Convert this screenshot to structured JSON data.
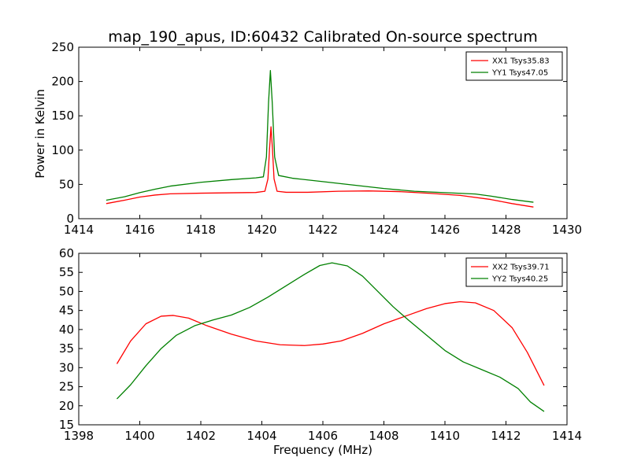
{
  "chart_data": [
    {
      "type": "line",
      "title": "map_190_apus, ID:60432 Calibrated On-source spectrum",
      "xlabel": "",
      "ylabel": "Power in Kelvin",
      "xlim": [
        1414,
        1430
      ],
      "ylim": [
        0,
        250
      ],
      "xticks": [
        1414,
        1416,
        1418,
        1420,
        1422,
        1424,
        1426,
        1428,
        1430
      ],
      "yticks": [
        0,
        50,
        100,
        150,
        200,
        250
      ],
      "grid": false,
      "legend_position": "top-right",
      "series": [
        {
          "name": "XX1 Tsys35.83",
          "color": "#ff0000",
          "points": [
            [
              1414.9,
              22
            ],
            [
              1415.5,
              27
            ],
            [
              1416,
              31.5
            ],
            [
              1416.5,
              34.5
            ],
            [
              1417,
              36.3
            ],
            [
              1418,
              37.2
            ],
            [
              1419,
              37.8
            ],
            [
              1419.8,
              38.2
            ],
            [
              1420.1,
              40
            ],
            [
              1420.2,
              58
            ],
            [
              1420.25,
              100
            ],
            [
              1420.3,
              134
            ],
            [
              1420.35,
              100
            ],
            [
              1420.4,
              58
            ],
            [
              1420.5,
              40
            ],
            [
              1420.8,
              38.5
            ],
            [
              1421.5,
              38.5
            ],
            [
              1422.5,
              40
            ],
            [
              1423.5,
              40.5
            ],
            [
              1424.5,
              39.5
            ],
            [
              1425.5,
              37
            ],
            [
              1426.5,
              34
            ],
            [
              1427.5,
              28
            ],
            [
              1428.2,
              22
            ],
            [
              1428.9,
              17
            ]
          ]
        },
        {
          "name": "YY1 Tsys47.05",
          "color": "#008000",
          "points": [
            [
              1414.9,
              27
            ],
            [
              1415.5,
              32
            ],
            [
              1416,
              38
            ],
            [
              1416.5,
              43
            ],
            [
              1417,
              47.5
            ],
            [
              1418,
              53
            ],
            [
              1419,
              57
            ],
            [
              1419.8,
              59.5
            ],
            [
              1420.05,
              61
            ],
            [
              1420.15,
              90
            ],
            [
              1420.22,
              170
            ],
            [
              1420.28,
              216
            ],
            [
              1420.34,
              170
            ],
            [
              1420.42,
              90
            ],
            [
              1420.55,
              63
            ],
            [
              1421,
              59
            ],
            [
              1422,
              54
            ],
            [
              1423,
              49
            ],
            [
              1424,
              44
            ],
            [
              1425,
              40
            ],
            [
              1426,
              38
            ],
            [
              1427,
              36
            ],
            [
              1427.5,
              33
            ],
            [
              1428.2,
              28
            ],
            [
              1428.9,
              24
            ]
          ]
        }
      ]
    },
    {
      "type": "line",
      "title": "",
      "xlabel": "Frequency (MHz)",
      "ylabel": "",
      "xlim": [
        1398,
        1414
      ],
      "ylim": [
        15,
        60
      ],
      "xticks": [
        1398,
        1400,
        1402,
        1404,
        1406,
        1408,
        1410,
        1412,
        1414
      ],
      "yticks": [
        15,
        20,
        25,
        30,
        35,
        40,
        45,
        50,
        55,
        60
      ],
      "grid": false,
      "legend_position": "top-right",
      "series": [
        {
          "name": "XX2 Tsys39.71",
          "color": "#ff0000",
          "points": [
            [
              1399.25,
              31
            ],
            [
              1399.7,
              37
            ],
            [
              1400.2,
              41.5
            ],
            [
              1400.7,
              43.5
            ],
            [
              1401.1,
              43.7
            ],
            [
              1401.6,
              43
            ],
            [
              1402.2,
              41
            ],
            [
              1403,
              38.8
            ],
            [
              1403.8,
              37
            ],
            [
              1404.6,
              36
            ],
            [
              1405.4,
              35.8
            ],
            [
              1406,
              36.2
            ],
            [
              1406.6,
              37
            ],
            [
              1407.3,
              39
            ],
            [
              1408,
              41.5
            ],
            [
              1408.7,
              43.5
            ],
            [
              1409.4,
              45.5
            ],
            [
              1410,
              46.8
            ],
            [
              1410.5,
              47.3
            ],
            [
              1411,
              47
            ],
            [
              1411.6,
              45
            ],
            [
              1412.2,
              40.5
            ],
            [
              1412.7,
              34
            ],
            [
              1413.25,
              25.3
            ]
          ]
        },
        {
          "name": "YY2 Tsys40.25",
          "color": "#008000",
          "points": [
            [
              1399.25,
              21.8
            ],
            [
              1399.7,
              25.5
            ],
            [
              1400.2,
              30.5
            ],
            [
              1400.7,
              35
            ],
            [
              1401.2,
              38.5
            ],
            [
              1401.8,
              41
            ],
            [
              1402.4,
              42.5
            ],
            [
              1403,
              43.8
            ],
            [
              1403.6,
              45.8
            ],
            [
              1404.2,
              48.5
            ],
            [
              1404.8,
              51.5
            ],
            [
              1405.4,
              54.5
            ],
            [
              1405.9,
              56.8
            ],
            [
              1406.3,
              57.5
            ],
            [
              1406.8,
              56.7
            ],
            [
              1407.3,
              54
            ],
            [
              1407.8,
              50
            ],
            [
              1408.3,
              46
            ],
            [
              1408.8,
              42.5
            ],
            [
              1409.4,
              38.5
            ],
            [
              1410,
              34.5
            ],
            [
              1410.6,
              31.5
            ],
            [
              1411.2,
              29.5
            ],
            [
              1411.8,
              27.5
            ],
            [
              1412.4,
              24.5
            ],
            [
              1412.8,
              21
            ],
            [
              1413.25,
              18.5
            ]
          ]
        }
      ]
    }
  ]
}
